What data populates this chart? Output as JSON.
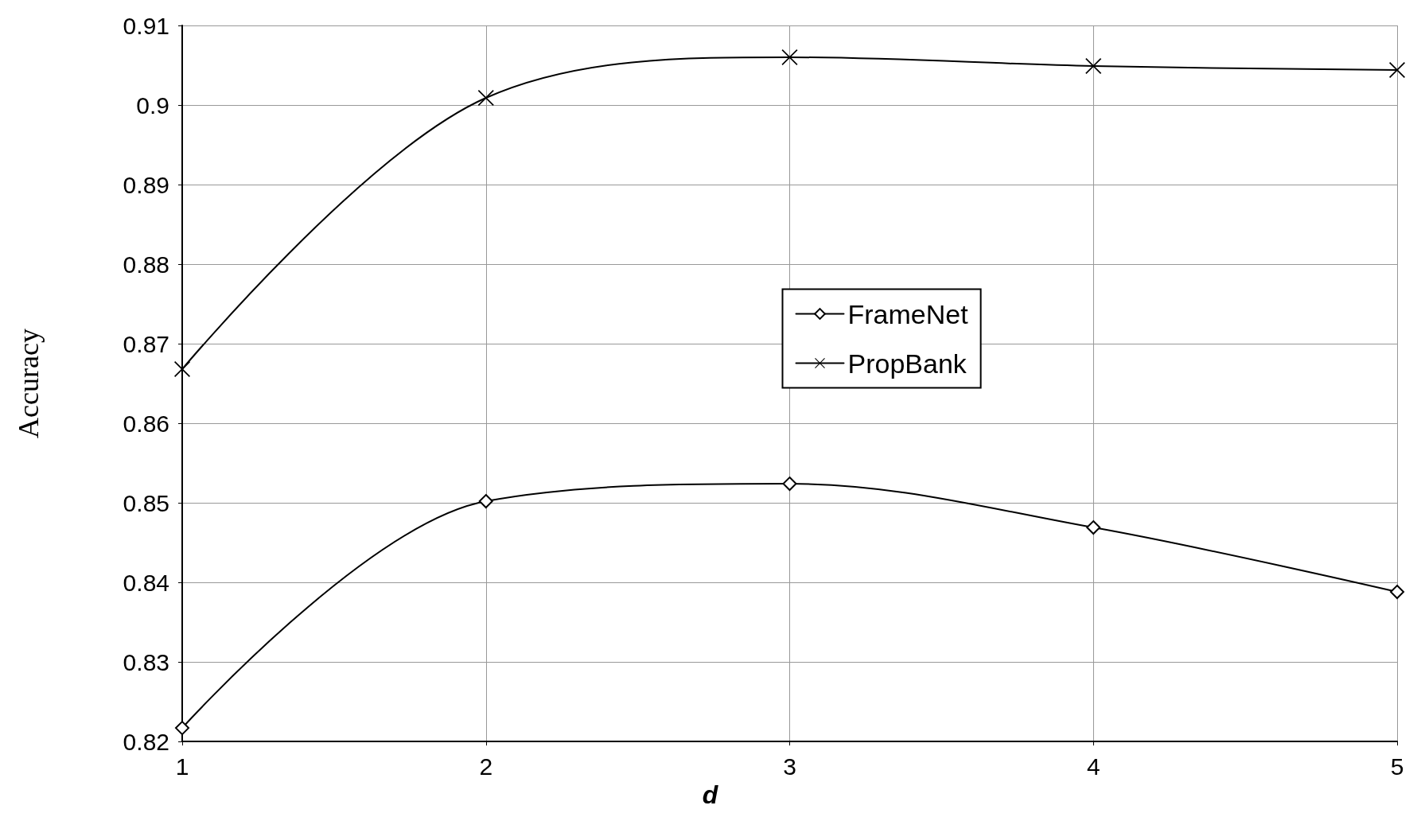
{
  "chart_data": {
    "type": "line",
    "xlabel": "d",
    "ylabel": "Accuracy",
    "x": [
      1,
      2,
      3,
      4,
      5
    ],
    "series": [
      {
        "name": "FrameNet",
        "color": "#000000",
        "marker": "diamond",
        "values": [
          0.8217,
          0.8502,
          0.8524,
          0.8469,
          0.8388
        ]
      },
      {
        "name": "PropBank",
        "color": "#000000",
        "marker": "cross",
        "values": [
          0.8668,
          0.9009,
          0.906,
          0.9049,
          0.9044
        ]
      }
    ],
    "xlim": [
      1,
      5
    ],
    "xticks": [
      1,
      2,
      3,
      4,
      5
    ],
    "ylim": [
      0.82,
      0.91
    ],
    "yticks": [
      0.82,
      0.83,
      0.84,
      0.85,
      0.86,
      0.87,
      0.88,
      0.89,
      0.9,
      0.91
    ],
    "grid": true,
    "legend": "center",
    "line_style": "solid"
  }
}
